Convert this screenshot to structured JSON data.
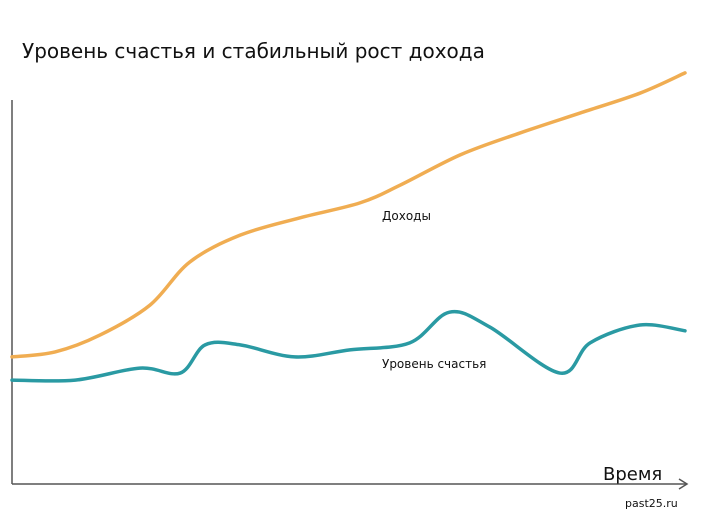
{
  "chart_data": {
    "type": "line",
    "title": "Уровень счастья и стабильный рост дохода",
    "x_label": "Время",
    "source": "past25.ru",
    "xlim": [
      0,
      100
    ],
    "ylim": [
      0,
      100
    ],
    "series": [
      {
        "name": "Доходы",
        "color": "#f0ad52",
        "x": [
          0,
          6.4,
          13.1,
          20.5,
          26.4,
          33.9,
          42.8,
          51.7,
          57.7,
          66.6,
          75.5,
          84.4,
          93.3,
          100
        ],
        "values": [
          30.7,
          31.9,
          36,
          43.2,
          53.6,
          60.1,
          64.3,
          67.9,
          72.2,
          79.5,
          84.8,
          89.6,
          94.4,
          99.3
        ]
      },
      {
        "name": "Уровень счастья",
        "color": "#2a9aa3",
        "x": [
          0,
          9.4,
          19,
          25,
          28.7,
          33.9,
          42,
          50.2,
          59.1,
          65,
          71,
          81.4,
          85.9,
          93.3,
          100
        ],
        "values": [
          25.1,
          25.1,
          28,
          26.8,
          33.6,
          33.6,
          30.7,
          32.4,
          34.1,
          41.5,
          37.9,
          26.8,
          34.1,
          38.4,
          37
        ]
      }
    ]
  }
}
